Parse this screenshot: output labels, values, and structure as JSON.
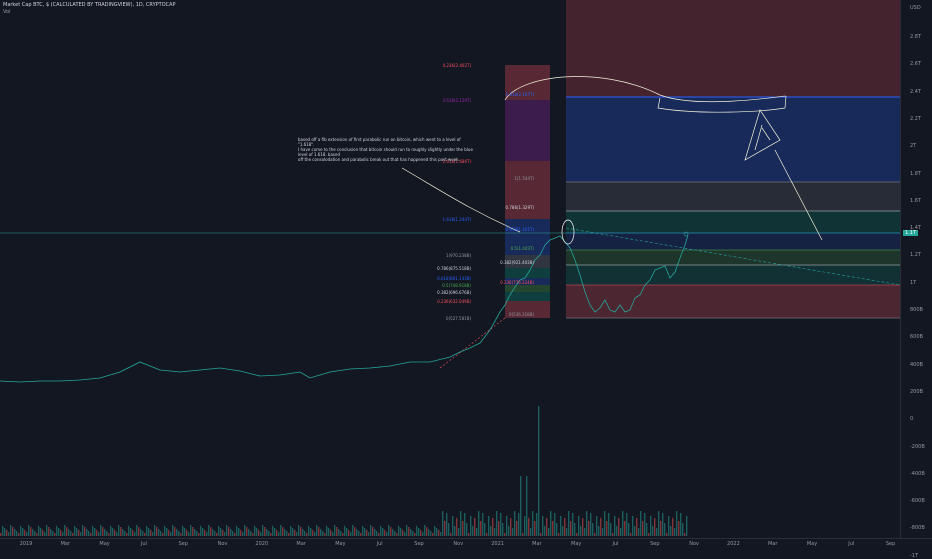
{
  "legend": {
    "title": "Market Cap BTC, $ (CALCULATED BY TRADINGVIEW), 1D, CRYPTOCAP",
    "volume_label": "Vol"
  },
  "currency_label": "USD",
  "current_price_badge": "1.1T",
  "price_axis_labels": [
    "2.8T",
    "2.6T",
    "2.4T",
    "2.2T",
    "2T",
    "1.8T",
    "1.6T",
    "1.4T",
    "1.2T",
    "1T",
    "800B",
    "600B",
    "400B",
    "200B",
    "0",
    "-200B",
    "-400B",
    "-600B",
    "-800B",
    "-1T"
  ],
  "time_axis_labels": [
    "2019",
    "Mar",
    "May",
    "Jul",
    "Sep",
    "Nov",
    "2020",
    "Mar",
    "May",
    "Jul",
    "Sep",
    "Nov",
    "2021",
    "Mar",
    "May",
    "Jul",
    "Sep",
    "Nov",
    "2022",
    "Mar",
    "May",
    "Jul",
    "Sep"
  ],
  "fib_left_labels": [
    {
      "text": "4.236(2.402T)",
      "color": "#f7525f"
    },
    {
      "text": "3.618(2.129T)",
      "color": "#9c27b0"
    },
    {
      "text": "2.618(1.686T)",
      "color": "#f7525f"
    },
    {
      "text": "1.618(1.244T)",
      "color": "#2962ff"
    },
    {
      "text": "1(970.238B)",
      "color": "#9598a1"
    },
    {
      "text": "0.786(875.518B)",
      "color": "#d1d4dc"
    },
    {
      "text": "0.618(801.143B)",
      "color": "#2962ff"
    },
    {
      "text": "0.5(748.918B)",
      "color": "#4caf50"
    },
    {
      "text": "0.382(696.676B)",
      "color": "#d1d4dc"
    },
    {
      "text": "0.236(632.049B)",
      "color": "#f7525f"
    },
    {
      "text": "0(527.581B)",
      "color": "#9598a1"
    }
  ],
  "fib_right_labels": [
    {
      "text": "1.618(2.167T)",
      "color": "#2962ff"
    },
    {
      "text": "1(1.544T)",
      "color": "#9598a1"
    },
    {
      "text": "0.786(1.329T)",
      "color": "#d1d4dc"
    },
    {
      "text": "0.618(1.161T)",
      "color": "#2962ff"
    },
    {
      "text": "0.5(1.043T)",
      "color": "#4caf50"
    },
    {
      "text": "0.382(921.403B)",
      "color": "#d1d4dc"
    },
    {
      "text": "0.236(776.224B)",
      "color": "#f7525f"
    },
    {
      "text": "0(536.318B)",
      "color": "#9598a1"
    }
  ],
  "annotation": {
    "line1": "based off a fib extension of first parabolic run on bitcoin, which went to a level of \"1.618\".",
    "line2": " I have come to the conclusion that bitcoin should run to roughly slightly under the blue level of 1.618. based",
    "line3": "off the consolodation and parabolic break out that has happened this past week."
  },
  "colors": {
    "background": "#131722",
    "up": "#26a69a",
    "down": "#ef5350",
    "fib_red": "#f7525f",
    "fib_blue": "#2962ff",
    "fib_green": "#4caf50",
    "fib_purple": "#9c27b0"
  }
}
